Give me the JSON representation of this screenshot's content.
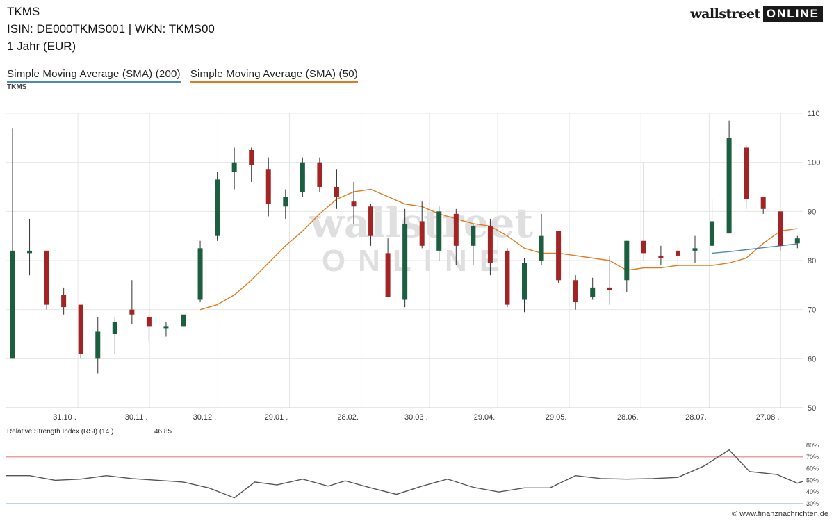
{
  "header": {
    "title": "TKMS",
    "isin_line": "ISIN: DE000TKMS001  | WKN: TKMS00",
    "period": "1 Jahr (EUR)"
  },
  "logo": {
    "brand": "wallstreet",
    "badge": "ONLINE"
  },
  "watermark": {
    "line1": "wallstreet",
    "line2": "ONLINE"
  },
  "source_text": "© www.finanznachrichten.de",
  "colors": {
    "up": "#1b5e40",
    "down": "#a32424",
    "sma200": "#4a8ab8",
    "sma50": "#e07b1d",
    "rsi": "#555555",
    "rsi_upper": "#e8a0a0",
    "rsi_lower": "#a8c8dc",
    "grid": "#e6e6e6"
  },
  "chart_data": [
    {
      "type": "candlestick",
      "ticker_label": "TKMS",
      "legend": [
        "Simple Moving Average (SMA) (200)",
        "Simple Moving Average (SMA) (50)"
      ],
      "ylim": [
        50,
        110
      ],
      "y_ticks": [
        "50",
        "60",
        "70",
        "80",
        "90",
        "100",
        "110"
      ],
      "y_axis_side": "right",
      "grid": true,
      "x_ticks": [
        {
          "label": "31.10 .",
          "i": 2
        },
        {
          "label": "30.11 .",
          "i": 6.2
        },
        {
          "label": "30.12 .",
          "i": 10.2
        },
        {
          "label": "29.01 .",
          "i": 14.4
        },
        {
          "label": "28.02.",
          "i": 18.6
        },
        {
          "label": "30.03 .",
          "i": 22.6
        },
        {
          "label": "29.04.",
          "i": 26.6
        },
        {
          "label": "29.05.",
          "i": 30.8
        },
        {
          "label": "28.06.",
          "i": 35
        },
        {
          "label": "28.07.",
          "i": 39
        },
        {
          "label": "27.08 .",
          "i": 43.2
        }
      ],
      "candles": [
        {
          "o": 60,
          "h": 107,
          "l": 60,
          "c": 82
        },
        {
          "o": 81.5,
          "h": 88.5,
          "l": 77,
          "c": 82
        },
        {
          "o": 82,
          "h": 82,
          "l": 70,
          "c": 71
        },
        {
          "o": 73,
          "h": 74.5,
          "l": 69,
          "c": 70.5
        },
        {
          "o": 71,
          "h": 71,
          "l": 60,
          "c": 61
        },
        {
          "o": 60,
          "h": 68.5,
          "l": 57,
          "c": 65.5
        },
        {
          "o": 65,
          "h": 68.5,
          "l": 61,
          "c": 67.5
        },
        {
          "o": 70,
          "h": 76,
          "l": 67,
          "c": 69
        },
        {
          "o": 68.5,
          "h": 69,
          "l": 63.5,
          "c": 66.5
        },
        {
          "o": 66.5,
          "h": 67.5,
          "l": 64.5,
          "c": 66.5
        },
        {
          "o": 66.5,
          "h": 69,
          "l": 65.5,
          "c": 69
        },
        {
          "o": 72,
          "h": 84,
          "l": 71.5,
          "c": 82.5
        },
        {
          "o": 85,
          "h": 98,
          "l": 84,
          "c": 96.5
        },
        {
          "o": 98,
          "h": 103,
          "l": 94.5,
          "c": 100
        },
        {
          "o": 102.5,
          "h": 103,
          "l": 96,
          "c": 99.5
        },
        {
          "o": 98.5,
          "h": 101,
          "l": 89,
          "c": 91.5
        },
        {
          "o": 91,
          "h": 94.5,
          "l": 88.5,
          "c": 93
        },
        {
          "o": 94,
          "h": 101,
          "l": 93,
          "c": 100
        },
        {
          "o": 100,
          "h": 101,
          "l": 94,
          "c": 95
        },
        {
          "o": 95,
          "h": 98.5,
          "l": 90.5,
          "c": 93
        },
        {
          "o": 92,
          "h": 96,
          "l": 87.5,
          "c": 91
        },
        {
          "o": 91,
          "h": 91.5,
          "l": 83,
          "c": 85
        },
        {
          "o": 81.5,
          "h": 84.5,
          "l": 72.5,
          "c": 72.5
        },
        {
          "o": 72,
          "h": 90.5,
          "l": 70.5,
          "c": 87.5
        },
        {
          "o": 88,
          "h": 92,
          "l": 82.5,
          "c": 83
        },
        {
          "o": 82,
          "h": 91,
          "l": 80,
          "c": 90
        },
        {
          "o": 89.5,
          "h": 90.5,
          "l": 79,
          "c": 83
        },
        {
          "o": 83,
          "h": 87.5,
          "l": 79,
          "c": 87
        },
        {
          "o": 87,
          "h": 88.5,
          "l": 77,
          "c": 79.5
        },
        {
          "o": 82,
          "h": 82.5,
          "l": 70.5,
          "c": 71
        },
        {
          "o": 72,
          "h": 80.5,
          "l": 69.5,
          "c": 79.5
        },
        {
          "o": 80,
          "h": 89.5,
          "l": 79,
          "c": 85
        },
        {
          "o": 86,
          "h": 86,
          "l": 75.5,
          "c": 76
        },
        {
          "o": 76,
          "h": 77,
          "l": 70,
          "c": 71.5
        },
        {
          "o": 72.5,
          "h": 76.5,
          "l": 72,
          "c": 74.5
        },
        {
          "o": 74.5,
          "h": 81,
          "l": 71,
          "c": 74
        },
        {
          "o": 76,
          "h": 84,
          "l": 73.5,
          "c": 84
        },
        {
          "o": 84,
          "h": 100,
          "l": 80,
          "c": 81.5
        },
        {
          "o": 81,
          "h": 83,
          "l": 79,
          "c": 80.5
        },
        {
          "o": 82,
          "h": 83,
          "l": 78.5,
          "c": 81
        },
        {
          "o": 82,
          "h": 85,
          "l": 79.5,
          "c": 82.5
        },
        {
          "o": 83,
          "h": 92.5,
          "l": 82.5,
          "c": 88
        },
        {
          "o": 85.5,
          "h": 108.5,
          "l": 85.5,
          "c": 105
        },
        {
          "o": 103,
          "h": 103.5,
          "l": 90.5,
          "c": 92.5
        },
        {
          "o": 93,
          "h": 93,
          "l": 89.5,
          "c": 90.5
        },
        {
          "o": 90,
          "h": 90,
          "l": 82,
          "c": 83
        },
        {
          "o": 83.5,
          "h": 85,
          "l": 82.5,
          "c": 84.5
        }
      ],
      "sma50": [
        {
          "i": 11,
          "v": 70
        },
        {
          "i": 12,
          "v": 71
        },
        {
          "i": 13,
          "v": 73
        },
        {
          "i": 14,
          "v": 76
        },
        {
          "i": 15,
          "v": 79.5
        },
        {
          "i": 16,
          "v": 83
        },
        {
          "i": 17,
          "v": 86
        },
        {
          "i": 18,
          "v": 89.5
        },
        {
          "i": 19,
          "v": 92.5
        },
        {
          "i": 20,
          "v": 94
        },
        {
          "i": 21,
          "v": 94.5
        },
        {
          "i": 22,
          "v": 93
        },
        {
          "i": 23,
          "v": 91.5
        },
        {
          "i": 24,
          "v": 91
        },
        {
          "i": 25,
          "v": 89.5
        },
        {
          "i": 26,
          "v": 88.5
        },
        {
          "i": 27,
          "v": 87.5
        },
        {
          "i": 28,
          "v": 87
        },
        {
          "i": 29,
          "v": 85
        },
        {
          "i": 30,
          "v": 82.5
        },
        {
          "i": 31,
          "v": 81.5
        },
        {
          "i": 32,
          "v": 81.5
        },
        {
          "i": 33,
          "v": 81
        },
        {
          "i": 34,
          "v": 80.5
        },
        {
          "i": 35,
          "v": 80
        },
        {
          "i": 36,
          "v": 78
        },
        {
          "i": 37,
          "v": 78.5
        },
        {
          "i": 38,
          "v": 78.5
        },
        {
          "i": 39,
          "v": 79
        },
        {
          "i": 40,
          "v": 79
        },
        {
          "i": 41,
          "v": 79
        },
        {
          "i": 42,
          "v": 79.5
        },
        {
          "i": 43,
          "v": 80.5
        },
        {
          "i": 44,
          "v": 83.5
        },
        {
          "i": 45,
          "v": 86
        },
        {
          "i": 46,
          "v": 86.5
        }
      ],
      "sma200": [
        {
          "i": 41,
          "v": 81.5
        },
        {
          "i": 42,
          "v": 81.8
        },
        {
          "i": 43,
          "v": 82.2
        },
        {
          "i": 44,
          "v": 82.6
        },
        {
          "i": 45,
          "v": 83
        },
        {
          "i": 46,
          "v": 83.4
        }
      ]
    },
    {
      "type": "line",
      "title": "Relative Strength Index (RSI) (14 )",
      "current_value": "46,85",
      "ylim": [
        30,
        80
      ],
      "y_ticks": [
        "30%",
        "40%",
        "50%",
        "60%",
        "70%",
        "80%"
      ],
      "reference_lines": [
        70,
        30
      ],
      "values": [
        {
          "i": -0.5,
          "v": 54
        },
        {
          "i": 1,
          "v": 54
        },
        {
          "i": 2.5,
          "v": 50
        },
        {
          "i": 4,
          "v": 51
        },
        {
          "i": 5.5,
          "v": 54
        },
        {
          "i": 7,
          "v": 51.5
        },
        {
          "i": 8.5,
          "v": 50
        },
        {
          "i": 10,
          "v": 48.5
        },
        {
          "i": 11.5,
          "v": 43.5
        },
        {
          "i": 13,
          "v": 35
        },
        {
          "i": 14.2,
          "v": 48.5
        },
        {
          "i": 15.5,
          "v": 46
        },
        {
          "i": 17,
          "v": 51
        },
        {
          "i": 18.5,
          "v": 45
        },
        {
          "i": 19.5,
          "v": 49.5
        },
        {
          "i": 21,
          "v": 43.5
        },
        {
          "i": 22.5,
          "v": 38
        },
        {
          "i": 24,
          "v": 45
        },
        {
          "i": 25.5,
          "v": 51
        },
        {
          "i": 27,
          "v": 44
        },
        {
          "i": 28.5,
          "v": 40
        },
        {
          "i": 30,
          "v": 43.5
        },
        {
          "i": 31.5,
          "v": 43.5
        },
        {
          "i": 33,
          "v": 54
        },
        {
          "i": 34.5,
          "v": 51.5
        },
        {
          "i": 36,
          "v": 51
        },
        {
          "i": 37.5,
          "v": 51.5
        },
        {
          "i": 39,
          "v": 52.5
        },
        {
          "i": 40.5,
          "v": 62
        },
        {
          "i": 42,
          "v": 76
        },
        {
          "i": 43.2,
          "v": 57.5
        },
        {
          "i": 44.8,
          "v": 55
        },
        {
          "i": 46,
          "v": 47.5
        },
        {
          "i": 47.5,
          "v": 49
        }
      ]
    }
  ]
}
